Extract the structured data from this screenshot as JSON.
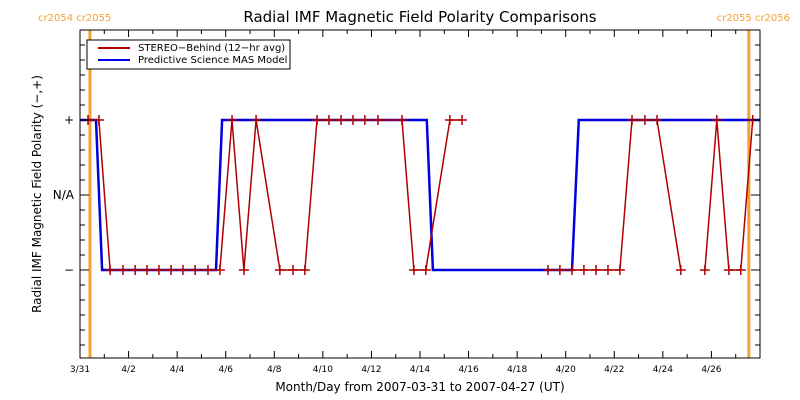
{
  "chart_data": {
    "type": "line",
    "title": "Radial IMF Magnetic Field Polarity Comparisons",
    "xlabel": "Month/Day from 2007-03-31 to 2007-04-27 (UT)",
    "ylabel": "Radial IMF Magnetic Field Polarity (−,+)",
    "x_unit": "days since 2007-03-31 00:00 UT",
    "xlim": [
      0,
      28
    ],
    "ylim": [
      -2,
      2
    ],
    "x_ticks": [
      {
        "value": 0,
        "label": "3/31"
      },
      {
        "value": 2,
        "label": "4/2"
      },
      {
        "value": 4,
        "label": "4/4"
      },
      {
        "value": 6,
        "label": "4/6"
      },
      {
        "value": 8,
        "label": "4/8"
      },
      {
        "value": 10,
        "label": "4/10"
      },
      {
        "value": 12,
        "label": "4/12"
      },
      {
        "value": 14,
        "label": "4/14"
      },
      {
        "value": 16,
        "label": "4/16"
      },
      {
        "value": 18,
        "label": "4/18"
      },
      {
        "value": 20,
        "label": "4/20"
      },
      {
        "value": 22,
        "label": "4/22"
      },
      {
        "value": 24,
        "label": "4/24"
      },
      {
        "value": 26,
        "label": "4/26"
      }
    ],
    "x_minor_step": 1,
    "y_ticks": [
      {
        "value": 1,
        "label": "+"
      },
      {
        "value": 0,
        "label": "N/A"
      },
      {
        "value": -1,
        "label": "−"
      }
    ],
    "y_minor_step": 0.2,
    "legend": {
      "position": "top-left",
      "entries": [
        {
          "name": "STEREO−Behind (12−hr avg)",
          "color": "#b00000"
        },
        {
          "name": "Predictive Science MAS Model",
          "color": "#0000e0"
        }
      ]
    },
    "carrington_markers": [
      {
        "day": 0.41,
        "label": "cr2054 cr2055",
        "label_side": "left"
      },
      {
        "day": 27.54,
        "label": "cr2055 cr2056",
        "label_side": "right"
      }
    ],
    "marker_color": "#f4a033",
    "series": [
      {
        "name": "STEREO−Behind (12−hr avg)",
        "color": "#b00000",
        "marker": "plus",
        "segments": [
          [
            [
              0.33,
              1
            ],
            [
              0.78,
              1
            ],
            [
              1.24,
              -1
            ],
            [
              1.77,
              -1
            ],
            [
              2.27,
              -1
            ],
            [
              2.76,
              -1
            ],
            [
              3.25,
              -1
            ],
            [
              3.75,
              -1
            ],
            [
              4.24,
              -1
            ],
            [
              4.74,
              -1
            ],
            [
              5.27,
              -1
            ],
            [
              5.76,
              -1
            ],
            [
              6.26,
              1
            ],
            [
              6.75,
              -1
            ],
            [
              7.25,
              1
            ],
            [
              8.23,
              -1
            ],
            [
              8.77,
              -1
            ],
            [
              9.26,
              -1
            ],
            [
              9.76,
              1
            ],
            [
              10.25,
              1
            ],
            [
              10.75,
              1
            ],
            [
              11.24,
              1
            ],
            [
              11.73,
              1
            ],
            [
              12.27,
              1
            ],
            [
              13.26,
              1
            ],
            [
              13.75,
              -1
            ],
            [
              14.24,
              -1
            ],
            [
              15.23,
              1
            ],
            [
              15.73,
              1
            ]
          ],
          [
            [
              19.27,
              -1
            ],
            [
              19.76,
              -1
            ],
            [
              20.26,
              -1
            ],
            [
              20.75,
              -1
            ],
            [
              21.25,
              -1
            ],
            [
              21.74,
              -1
            ],
            [
              22.23,
              -1
            ],
            [
              22.73,
              1
            ],
            [
              23.26,
              1
            ],
            [
              23.76,
              1
            ],
            [
              24.74,
              -1
            ]
          ],
          [
            [
              25.73,
              -1
            ],
            [
              26.22,
              1
            ],
            [
              26.72,
              -1
            ],
            [
              27.21,
              -1
            ],
            [
              27.7,
              1
            ]
          ]
        ]
      },
      {
        "name": "Predictive Science MAS Model",
        "color": "#0000e0",
        "marker": "none",
        "segments": [
          [
            [
              0,
              1
            ],
            [
              0.66,
              1
            ],
            [
              0.91,
              -1
            ],
            [
              5.6,
              -1
            ],
            [
              5.85,
              1
            ],
            [
              14.28,
              1
            ],
            [
              14.53,
              -1
            ],
            [
              20.26,
              -1
            ],
            [
              20.54,
              1
            ],
            [
              28,
              1
            ]
          ]
        ]
      }
    ]
  }
}
